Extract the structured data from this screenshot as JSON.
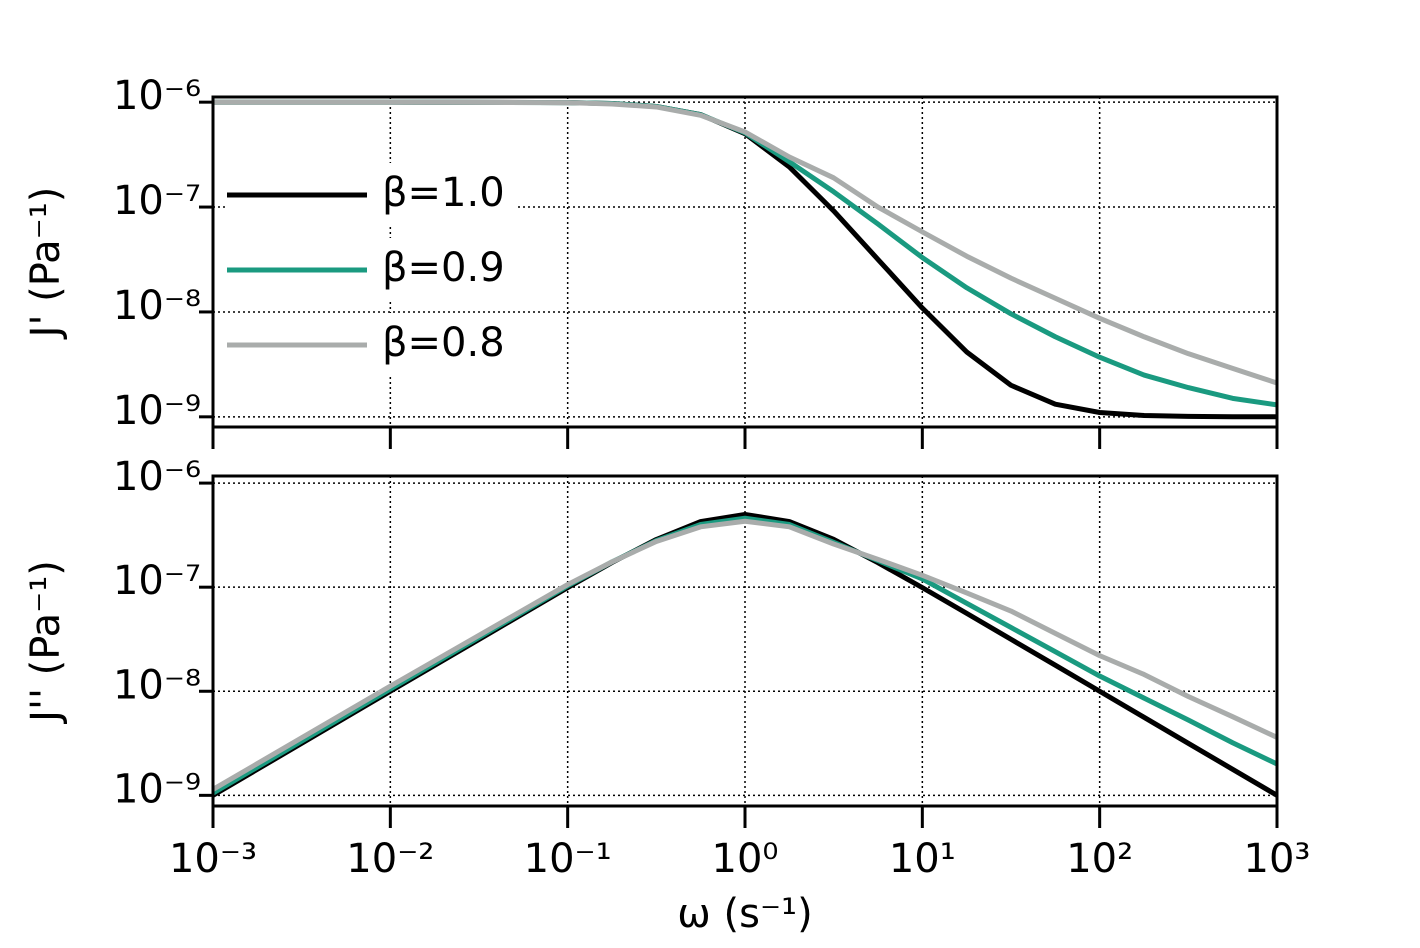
{
  "chart_data": [
    {
      "type": "line",
      "ylabel": "J' (Pa⁻¹)",
      "log_x": true,
      "log_y": true,
      "grid": true,
      "legend": "center left",
      "xlim": [
        0.001,
        1000
      ],
      "xticks": [
        0.001,
        0.01,
        0.1,
        1,
        10,
        100,
        1000
      ],
      "ylim": [
        8e-10,
        1.12e-06
      ],
      "yticks": [
        {
          "value": 1e-09,
          "label": "10⁻⁹"
        },
        {
          "value": 1e-08,
          "label": "10⁻⁸"
        },
        {
          "value": 1e-07,
          "label": "10⁻⁷"
        },
        {
          "value": 1e-06,
          "label": "10⁻⁶"
        }
      ],
      "x": [
        0.001,
        0.01,
        0.1,
        0.178,
        0.316,
        0.562,
        1,
        1.78,
        3.16,
        5.62,
        10,
        17.8,
        31.6,
        56.2,
        100,
        178,
        316,
        562,
        1000
      ],
      "series": [
        {
          "name": "β=1.0",
          "color": "#000000",
          "values": [
            1e-06,
            1e-06,
            9.91e-07,
            9.7e-07,
            9.1e-07,
            7.61e-07,
            5.01e-07,
            2.41e-07,
            9.2e-08,
            3.17e-08,
            1.09e-08,
            4.15e-09,
            2e-09,
            1.32e-09,
            1.1e-09,
            1.03e-09,
            1.01e-09,
            1.003e-09,
            1.001e-09
          ]
        },
        {
          "name": "β=0.9",
          "color": "#1a9a80",
          "values": [
            1e-06,
            1e-06,
            9.9e-07,
            9.7e-07,
            9.1e-07,
            7.6e-07,
            5.1e-07,
            2.7e-07,
            1.4e-07,
            6.9e-08,
            3.3e-08,
            1.7e-08,
            9.6e-09,
            5.8e-09,
            3.7e-09,
            2.5e-09,
            1.9e-09,
            1.5e-09,
            1.3e-09
          ]
        },
        {
          "name": "β=0.8",
          "color": "#a9acab",
          "values": [
            1e-06,
            1e-06,
            9.9e-07,
            9.6e-07,
            9e-07,
            7.5e-07,
            5.2e-07,
            3e-07,
            1.9e-07,
            1e-07,
            5.8e-08,
            3.4e-08,
            2.1e-08,
            1.35e-08,
            8.7e-09,
            5.8e-09,
            4e-09,
            2.9e-09,
            2.1e-09
          ]
        }
      ]
    },
    {
      "type": "line",
      "ylabel": "J'' (Pa⁻¹)",
      "xlabel": "ω (s⁻¹)",
      "log_x": true,
      "log_y": true,
      "grid": true,
      "xlim": [
        0.001,
        1000
      ],
      "xticks": [
        {
          "value": 0.001,
          "label": "10⁻³"
        },
        {
          "value": 0.01,
          "label": "10⁻²"
        },
        {
          "value": 0.1,
          "label": "10⁻¹"
        },
        {
          "value": 1,
          "label": "10⁰"
        },
        {
          "value": 10,
          "label": "10¹"
        },
        {
          "value": 100,
          "label": "10²"
        },
        {
          "value": 1000,
          "label": "10³"
        }
      ],
      "ylim": [
        7.9e-10,
        1.17e-06
      ],
      "yticks": [
        {
          "value": 1e-09,
          "label": "10⁻⁹"
        },
        {
          "value": 1e-08,
          "label": "10⁻⁸"
        },
        {
          "value": 1e-07,
          "label": "10⁻⁷"
        },
        {
          "value": 1e-06,
          "label": "10⁻⁶"
        }
      ],
      "x": [
        0.001,
        0.01,
        0.1,
        0.178,
        0.316,
        0.562,
        1,
        1.78,
        3.16,
        5.62,
        10,
        17.8,
        31.6,
        56.2,
        100,
        178,
        316,
        562,
        1000
      ],
      "series": [
        {
          "name": "β=1.0",
          "color": "#000000",
          "values": [
            1e-09,
            1e-08,
            9.9e-08,
            1.73e-07,
            2.87e-07,
            4.27e-07,
            5e-07,
            4.27e-07,
            2.88e-07,
            1.72e-07,
            9.9e-08,
            5.6e-08,
            3.16e-08,
            1.78e-08,
            1e-08,
            5.62e-09,
            3.16e-09,
            1.78e-09,
            1e-09
          ]
        },
        {
          "name": "β=0.9",
          "color": "#1a9a80",
          "values": [
            1.05e-09,
            1.05e-08,
            1.03e-07,
            1.75e-07,
            2.8e-07,
            4e-07,
            4.6e-07,
            4e-07,
            2.7e-07,
            1.8e-07,
            1.2e-07,
            7e-08,
            4.1e-08,
            2.4e-08,
            1.4e-08,
            8.6e-09,
            5.3e-09,
            3.2e-09,
            2e-09
          ]
        },
        {
          "name": "β=0.8",
          "color": "#a9acab",
          "values": [
            1.14e-09,
            1.12e-08,
            1.06e-07,
            1.75e-07,
            2.75e-07,
            3.8e-07,
            4.3e-07,
            3.8e-07,
            2.6e-07,
            1.85e-07,
            1.3e-07,
            8.8e-08,
            5.9e-08,
            3.6e-08,
            2.2e-08,
            1.45e-08,
            8.9e-09,
            5.7e-09,
            3.6e-09
          ]
        }
      ]
    }
  ]
}
